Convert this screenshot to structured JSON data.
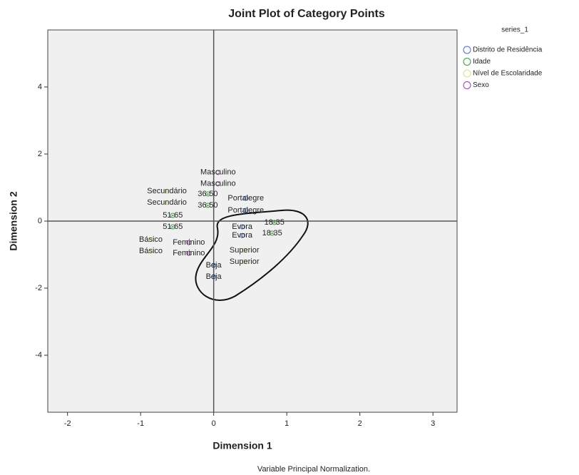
{
  "chart_data": {
    "type": "scatter",
    "title": "Joint Plot of Category Points",
    "x_label": "Dimension 1",
    "y_label": "Dimension 2",
    "footnote": "Variable Principal Normalization.",
    "legend_title": "series_1",
    "legend": "right",
    "xlim": [
      -2.27,
      3.33
    ],
    "ylim": [
      -5.7,
      5.7
    ],
    "xticks": [
      -2,
      -1,
      0,
      1,
      2,
      3
    ],
    "yticks": [
      -4,
      -2,
      0,
      2,
      4
    ],
    "origin_lines": true,
    "series": [
      {
        "name": "Distrito de Residência",
        "color": "#4a6fd0",
        "x": [
          0.44,
          0.44,
          0.39,
          0.39,
          0.0,
          0.0
        ],
        "y": [
          0.68,
          0.32,
          -0.17,
          -0.43,
          -1.32,
          -1.66
        ],
        "labels": [
          "Portalegre",
          "Portalegre",
          "Evora",
          "Evora",
          "Beja",
          "Beja"
        ]
      },
      {
        "name": "Idade",
        "color": "#3a9a3a",
        "x": [
          -0.08,
          -0.08,
          -0.56,
          -0.56,
          0.83,
          0.8
        ],
        "y": [
          0.81,
          0.47,
          0.17,
          -0.17,
          -0.04,
          -0.36
        ],
        "labels": [
          "36-50",
          "36-50",
          "51-65",
          "51-65",
          "18-35",
          "18-35"
        ]
      },
      {
        "name": "Nível de Escolaridade",
        "color": "#d8e08a",
        "x": [
          -0.64,
          -0.64,
          -0.86,
          -0.86,
          0.42,
          0.42
        ],
        "y": [
          0.89,
          0.55,
          -0.55,
          -0.89,
          -0.87,
          -1.21
        ],
        "labels": [
          "Secundário",
          "Secundário",
          "Básico",
          "Básico",
          "Superior",
          "Superior"
        ]
      },
      {
        "name": "Sexo",
        "color": "#9b3fb0",
        "x": [
          0.06,
          0.06,
          -0.34,
          -0.34
        ],
        "y": [
          1.45,
          1.11,
          -0.64,
          -0.96
        ],
        "labels": [
          "Masculino",
          "Masculino",
          "Feminino",
          "Feminino"
        ]
      }
    ]
  }
}
